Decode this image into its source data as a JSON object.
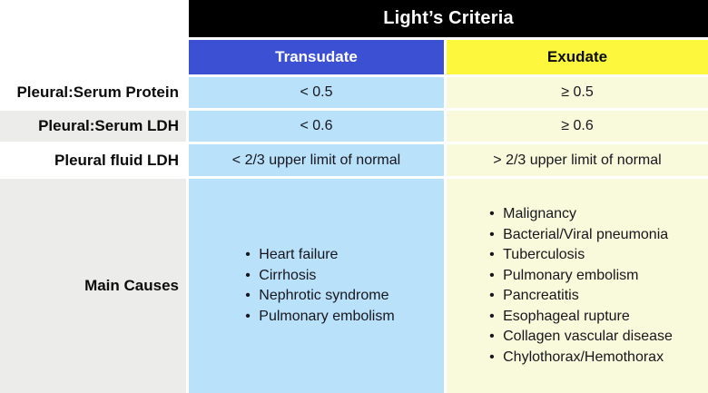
{
  "title": "Light’s Criteria",
  "columns": {
    "transudate": "Transudate",
    "exudate": "Exudate"
  },
  "rows": [
    {
      "label": "Pleural:Serum Protein",
      "transudate": "< 0.5",
      "exudate": "≥ 0.5"
    },
    {
      "label": "Pleural:Serum LDH",
      "transudate": "< 0.6",
      "exudate": "≥ 0.6"
    },
    {
      "label": "Pleural fluid LDH",
      "transudate": "< 2/3 upper limit of normal",
      "exudate": "> 2/3 upper limit of normal"
    }
  ],
  "main_causes": {
    "label": "Main Causes",
    "transudate": [
      "Heart failure",
      "Cirrhosis",
      "Nephrotic syndrome",
      "Pulmonary embolism"
    ],
    "exudate": [
      "Malignancy",
      "Bacterial/Viral pneumonia",
      "Tuberculosis",
      "Pulmonary embolism",
      "Pancreatitis",
      "Esophageal rupture",
      "Collagen vascular disease",
      "Chylothorax/Hemothorax"
    ]
  },
  "colors": {
    "header_bg": "#000000",
    "transudate_header_bg": "#3B50D2",
    "exudate_header_bg": "#FDF83D",
    "transudate_cell_bg": "#BAE1FA",
    "exudate_cell_bg": "#F9FADC",
    "label_stripe_bg": "#ECECEB"
  }
}
